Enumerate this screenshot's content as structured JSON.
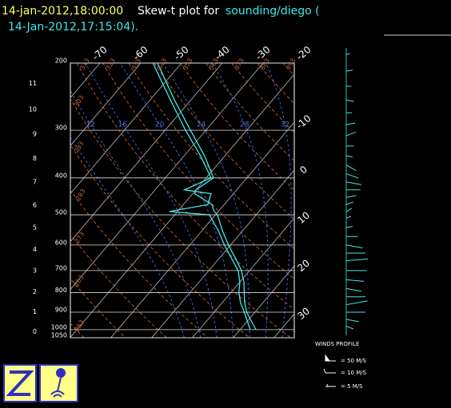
{
  "chart_data": {
    "type": "skew-t",
    "title": {
      "time": "14-jan-2012,18:00:00",
      "text": "Skew-t plot for",
      "source": "sounding/diego (",
      "time2": "14-Jan-2012,17:15:04)."
    },
    "ylim": [
      200,
      1050
    ],
    "log_y": true,
    "yticks": [
      200,
      300,
      400,
      500,
      600,
      700,
      800,
      900,
      1000,
      1050
    ],
    "height_ticks": [
      0,
      1,
      2,
      3,
      4,
      5,
      6,
      7,
      8,
      9,
      10,
      11
    ],
    "isotherms": [
      -70,
      -60,
      -50,
      -40,
      -30,
      -20,
      -10,
      0,
      10,
      20,
      30
    ],
    "dry_adiabats": [
      253,
      263,
      273,
      283,
      293,
      303,
      313,
      323,
      333,
      343,
      353,
      363,
      373,
      383,
      393
    ],
    "moist_adiabats": [
      8,
      12,
      16,
      20,
      24,
      28,
      32
    ],
    "pressures": [
      200,
      250,
      300,
      350,
      400,
      430,
      440,
      470,
      490,
      500,
      550,
      600,
      650,
      700,
      750,
      800,
      850,
      900,
      950,
      1000
    ],
    "series": [
      {
        "color": "#40e8e8",
        "values": [
          -55.9,
          -44,
          -33.8,
          -25,
          -18.2,
          -20,
          -19.5,
          -13,
          -11,
          -9.5,
          -5,
          -0.5,
          4,
          8,
          11,
          13.3,
          15.5,
          18,
          21,
          23.9
        ]
      },
      {
        "color": "#40e8e8",
        "values": [
          -57,
          -45,
          -35,
          -26,
          -18.8,
          -22.8,
          -15.5,
          -14,
          -22,
          -11.5,
          -6,
          -1.5,
          3,
          7.2,
          10,
          12,
          14.5,
          17.4,
          20,
          22.5
        ]
      }
    ],
    "winds": {
      "title": "WINDS PROFILE",
      "legend": [
        "= 50 M/S",
        "= 10 M/S",
        "= 5 M/S"
      ],
      "pressures": [
        190,
        210,
        230,
        250,
        270,
        290,
        310,
        330,
        350,
        370,
        390,
        410,
        430,
        450,
        470,
        490,
        510,
        540,
        570,
        600,
        630,
        660,
        700,
        740,
        780,
        820,
        860,
        900,
        940,
        980
      ],
      "speeds": [
        6,
        10,
        8,
        12,
        9,
        14,
        16,
        12,
        10,
        18,
        20,
        24,
        22,
        16,
        12,
        10,
        8,
        10,
        18,
        26,
        30,
        34,
        32,
        28,
        24,
        30,
        34,
        30,
        20,
        12
      ],
      "directions": [
        250,
        260,
        270,
        280,
        270,
        260,
        250,
        270,
        280,
        300,
        290,
        280,
        270,
        260,
        250,
        240,
        250,
        260,
        270,
        280,
        270,
        265,
        270,
        275,
        280,
        270,
        260,
        270,
        280,
        290
      ]
    }
  }
}
